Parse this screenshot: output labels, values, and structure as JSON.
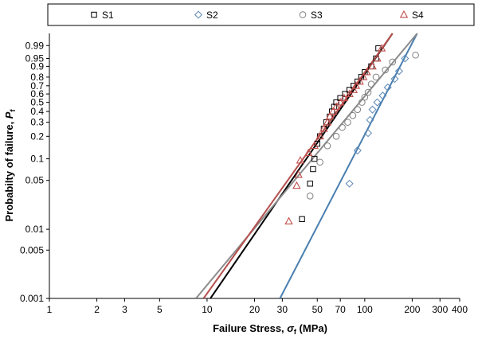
{
  "chart_data": {
    "type": "scatter",
    "title": "",
    "xlabel_main": "Failure Stress, ",
    "xlabel_sym": "σ",
    "xlabel_sub": "f",
    "xlabel_unit": " (MPa)",
    "ylabel_main": "Probabilty of failure, ",
    "ylabel_sym": "P",
    "ylabel_sub": "f",
    "x_scale": "log",
    "y_scale": "weibull",
    "xlim": [
      1,
      400
    ],
    "ylim": [
      0.001,
      0.999
    ],
    "x_ticks": [
      1,
      2,
      3,
      5,
      10,
      20,
      30,
      50,
      70,
      100,
      200,
      300,
      400
    ],
    "x_tick_labels": [
      "1",
      "2",
      "3",
      "5",
      "10",
      "20",
      "30",
      "50",
      "70",
      "100",
      "200",
      "300",
      "400"
    ],
    "y_ticks": [
      0.001,
      0.005,
      0.01,
      0.05,
      0.1,
      0.2,
      0.3,
      0.4,
      0.5,
      0.6,
      0.7,
      0.8,
      0.9,
      0.95,
      0.99
    ],
    "y_tick_labels": [
      "0.001",
      "0.005",
      "0.01",
      "0.05",
      "0.1",
      "0.2",
      "0.3",
      "0.4",
      "0.5",
      "0.6",
      "0.7",
      "0.8",
      "0.9",
      "0.95",
      "0.99"
    ],
    "grid": false,
    "legend_position": "top",
    "series": [
      {
        "name": "S1",
        "marker": "square",
        "color": "#000000",
        "line_color": "#000000",
        "fit": [
          [
            10.5,
            0.001
          ],
          [
            150,
            0.999
          ]
        ],
        "points": [
          [
            40,
            0.014
          ],
          [
            45,
            0.045
          ],
          [
            47,
            0.072
          ],
          [
            48,
            0.1
          ],
          [
            50,
            0.16
          ],
          [
            52,
            0.2
          ],
          [
            55,
            0.25
          ],
          [
            57,
            0.3
          ],
          [
            60,
            0.35
          ],
          [
            62,
            0.4
          ],
          [
            64,
            0.45
          ],
          [
            66,
            0.5
          ],
          [
            70,
            0.55
          ],
          [
            75,
            0.6
          ],
          [
            80,
            0.65
          ],
          [
            85,
            0.7
          ],
          [
            90,
            0.75
          ],
          [
            95,
            0.8
          ],
          [
            100,
            0.85
          ],
          [
            110,
            0.9
          ],
          [
            118,
            0.95
          ],
          [
            122,
            0.985
          ]
        ]
      },
      {
        "name": "S2",
        "marker": "diamond",
        "color": "#5b87b5",
        "line_color": "#4a7fb0",
        "fit": [
          [
            29,
            0.001
          ],
          [
            215,
            0.999
          ]
        ],
        "points": [
          [
            80,
            0.045
          ],
          [
            90,
            0.13
          ],
          [
            105,
            0.22
          ],
          [
            108,
            0.32
          ],
          [
            112,
            0.42
          ],
          [
            120,
            0.5
          ],
          [
            130,
            0.58
          ],
          [
            140,
            0.68
          ],
          [
            155,
            0.78
          ],
          [
            165,
            0.86
          ],
          [
            180,
            0.95
          ]
        ]
      },
      {
        "name": "S3",
        "marker": "circle",
        "color": "#808080",
        "line_color": "#8c8c8c",
        "fit": [
          [
            8.5,
            0.001
          ],
          [
            215,
            0.999
          ]
        ],
        "points": [
          [
            45,
            0.03
          ],
          [
            52,
            0.09
          ],
          [
            58,
            0.15
          ],
          [
            66,
            0.2
          ],
          [
            72,
            0.26
          ],
          [
            78,
            0.3
          ],
          [
            84,
            0.36
          ],
          [
            90,
            0.42
          ],
          [
            96,
            0.5
          ],
          [
            100,
            0.56
          ],
          [
            105,
            0.62
          ],
          [
            110,
            0.72
          ],
          [
            118,
            0.8
          ],
          [
            135,
            0.87
          ],
          [
            150,
            0.93
          ],
          [
            210,
            0.965
          ]
        ]
      },
      {
        "name": "S4",
        "marker": "triangle",
        "color": "#c0504d",
        "line_color": "#b5504d",
        "fit": [
          [
            9.5,
            0.001
          ],
          [
            150,
            0.999
          ]
        ],
        "points": [
          [
            33,
            0.013
          ],
          [
            37,
            0.042
          ],
          [
            38,
            0.06
          ],
          [
            39,
            0.095
          ],
          [
            44,
            0.12
          ],
          [
            48,
            0.15
          ],
          [
            52,
            0.2
          ],
          [
            55,
            0.25
          ],
          [
            58,
            0.3
          ],
          [
            60,
            0.35
          ],
          [
            63,
            0.4
          ],
          [
            66,
            0.45
          ],
          [
            70,
            0.5
          ],
          [
            74,
            0.55
          ],
          [
            80,
            0.6
          ],
          [
            85,
            0.65
          ],
          [
            88,
            0.7
          ],
          [
            93,
            0.75
          ],
          [
            98,
            0.8
          ],
          [
            103,
            0.85
          ],
          [
            112,
            0.9
          ],
          [
            120,
            0.95
          ],
          [
            128,
            0.985
          ]
        ]
      }
    ]
  }
}
